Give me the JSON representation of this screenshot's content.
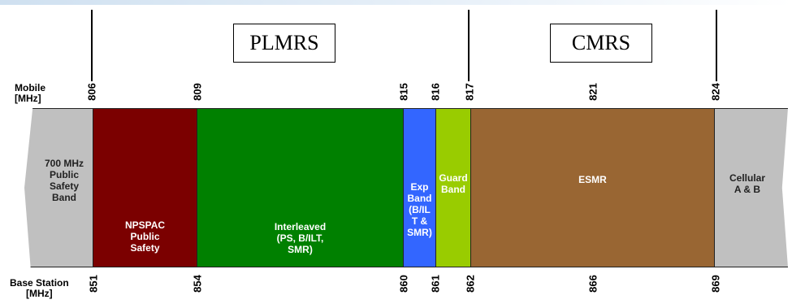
{
  "groups": [
    {
      "label": "PLMRS"
    },
    {
      "label": "CMRS"
    }
  ],
  "axis_labels": {
    "mobile": "Mobile\n[MHz]",
    "base": "Base Station\n[MHz]"
  },
  "mobile_ticks": [
    "806",
    "809",
    "815",
    "816",
    "817",
    "821",
    "824"
  ],
  "base_ticks": [
    "851",
    "854",
    "860",
    "861",
    "862",
    "866",
    "869"
  ],
  "bands": [
    {
      "label": "700 MHz\nPublic\nSafety\nBand",
      "color": "#c0c0c0"
    },
    {
      "label": "NPSPAC\nPublic\nSafety",
      "color": "#7b0000"
    },
    {
      "label": "Interleaved\n(PS, B/ILT,\nSMR)",
      "color": "#008000"
    },
    {
      "label": "Exp\nBand\n(B/IL\nT &\nSMR)",
      "color": "#3366ff"
    },
    {
      "label": "Guard\nBand",
      "color": "#99cc00"
    },
    {
      "label": "ESMR",
      "color": "#996633"
    },
    {
      "label": "Cellular\nA & B",
      "color": "#c0c0c0"
    }
  ]
}
